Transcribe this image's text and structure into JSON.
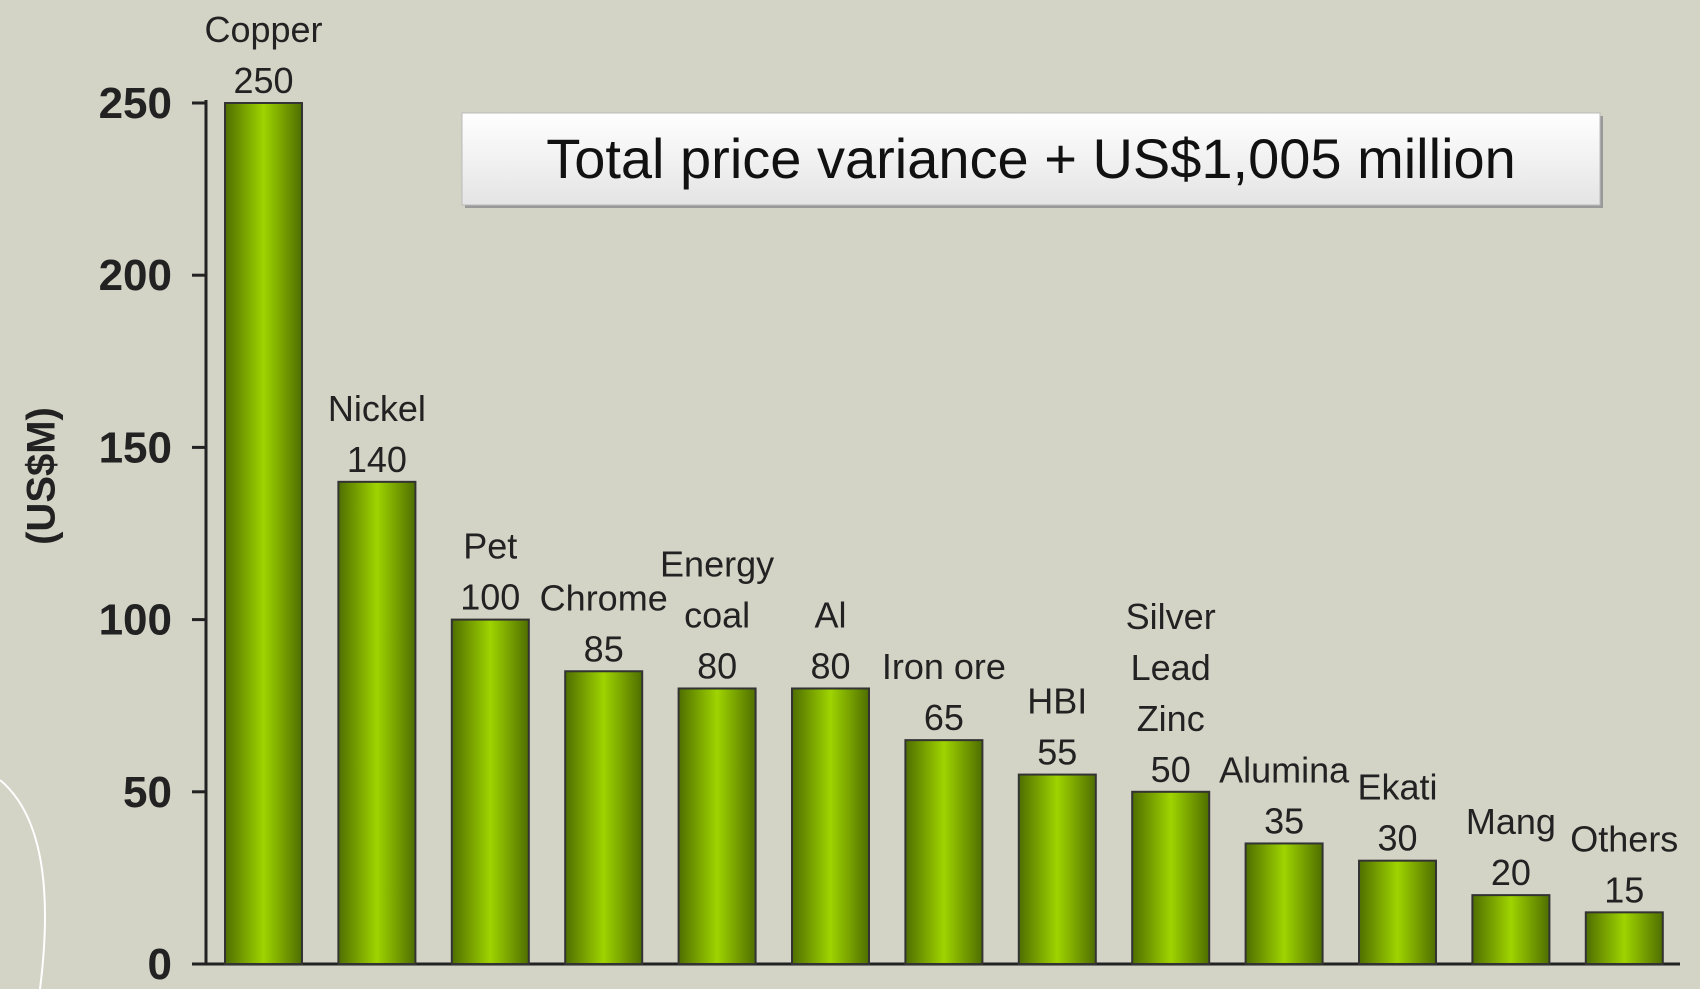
{
  "chart_data": {
    "type": "bar",
    "annotation": "Total price variance + US$1,005 million",
    "y_label": "(US$M)",
    "categories": [
      "Copper",
      "Nickel",
      "Pet",
      "Chrome",
      "Energy\ncoal",
      "Al",
      "Iron ore",
      "HBI",
      "Silver\nLead\nZinc",
      "Alumina",
      "Ekati",
      "Mang",
      "Others"
    ],
    "values": [
      250,
      140,
      100,
      85,
      80,
      80,
      65,
      55,
      50,
      35,
      30,
      20,
      15
    ],
    "color": "#96c800",
    "ylim": [
      0,
      250
    ],
    "yticks": [
      0,
      50,
      100,
      150,
      200,
      250
    ],
    "grid": false
  }
}
